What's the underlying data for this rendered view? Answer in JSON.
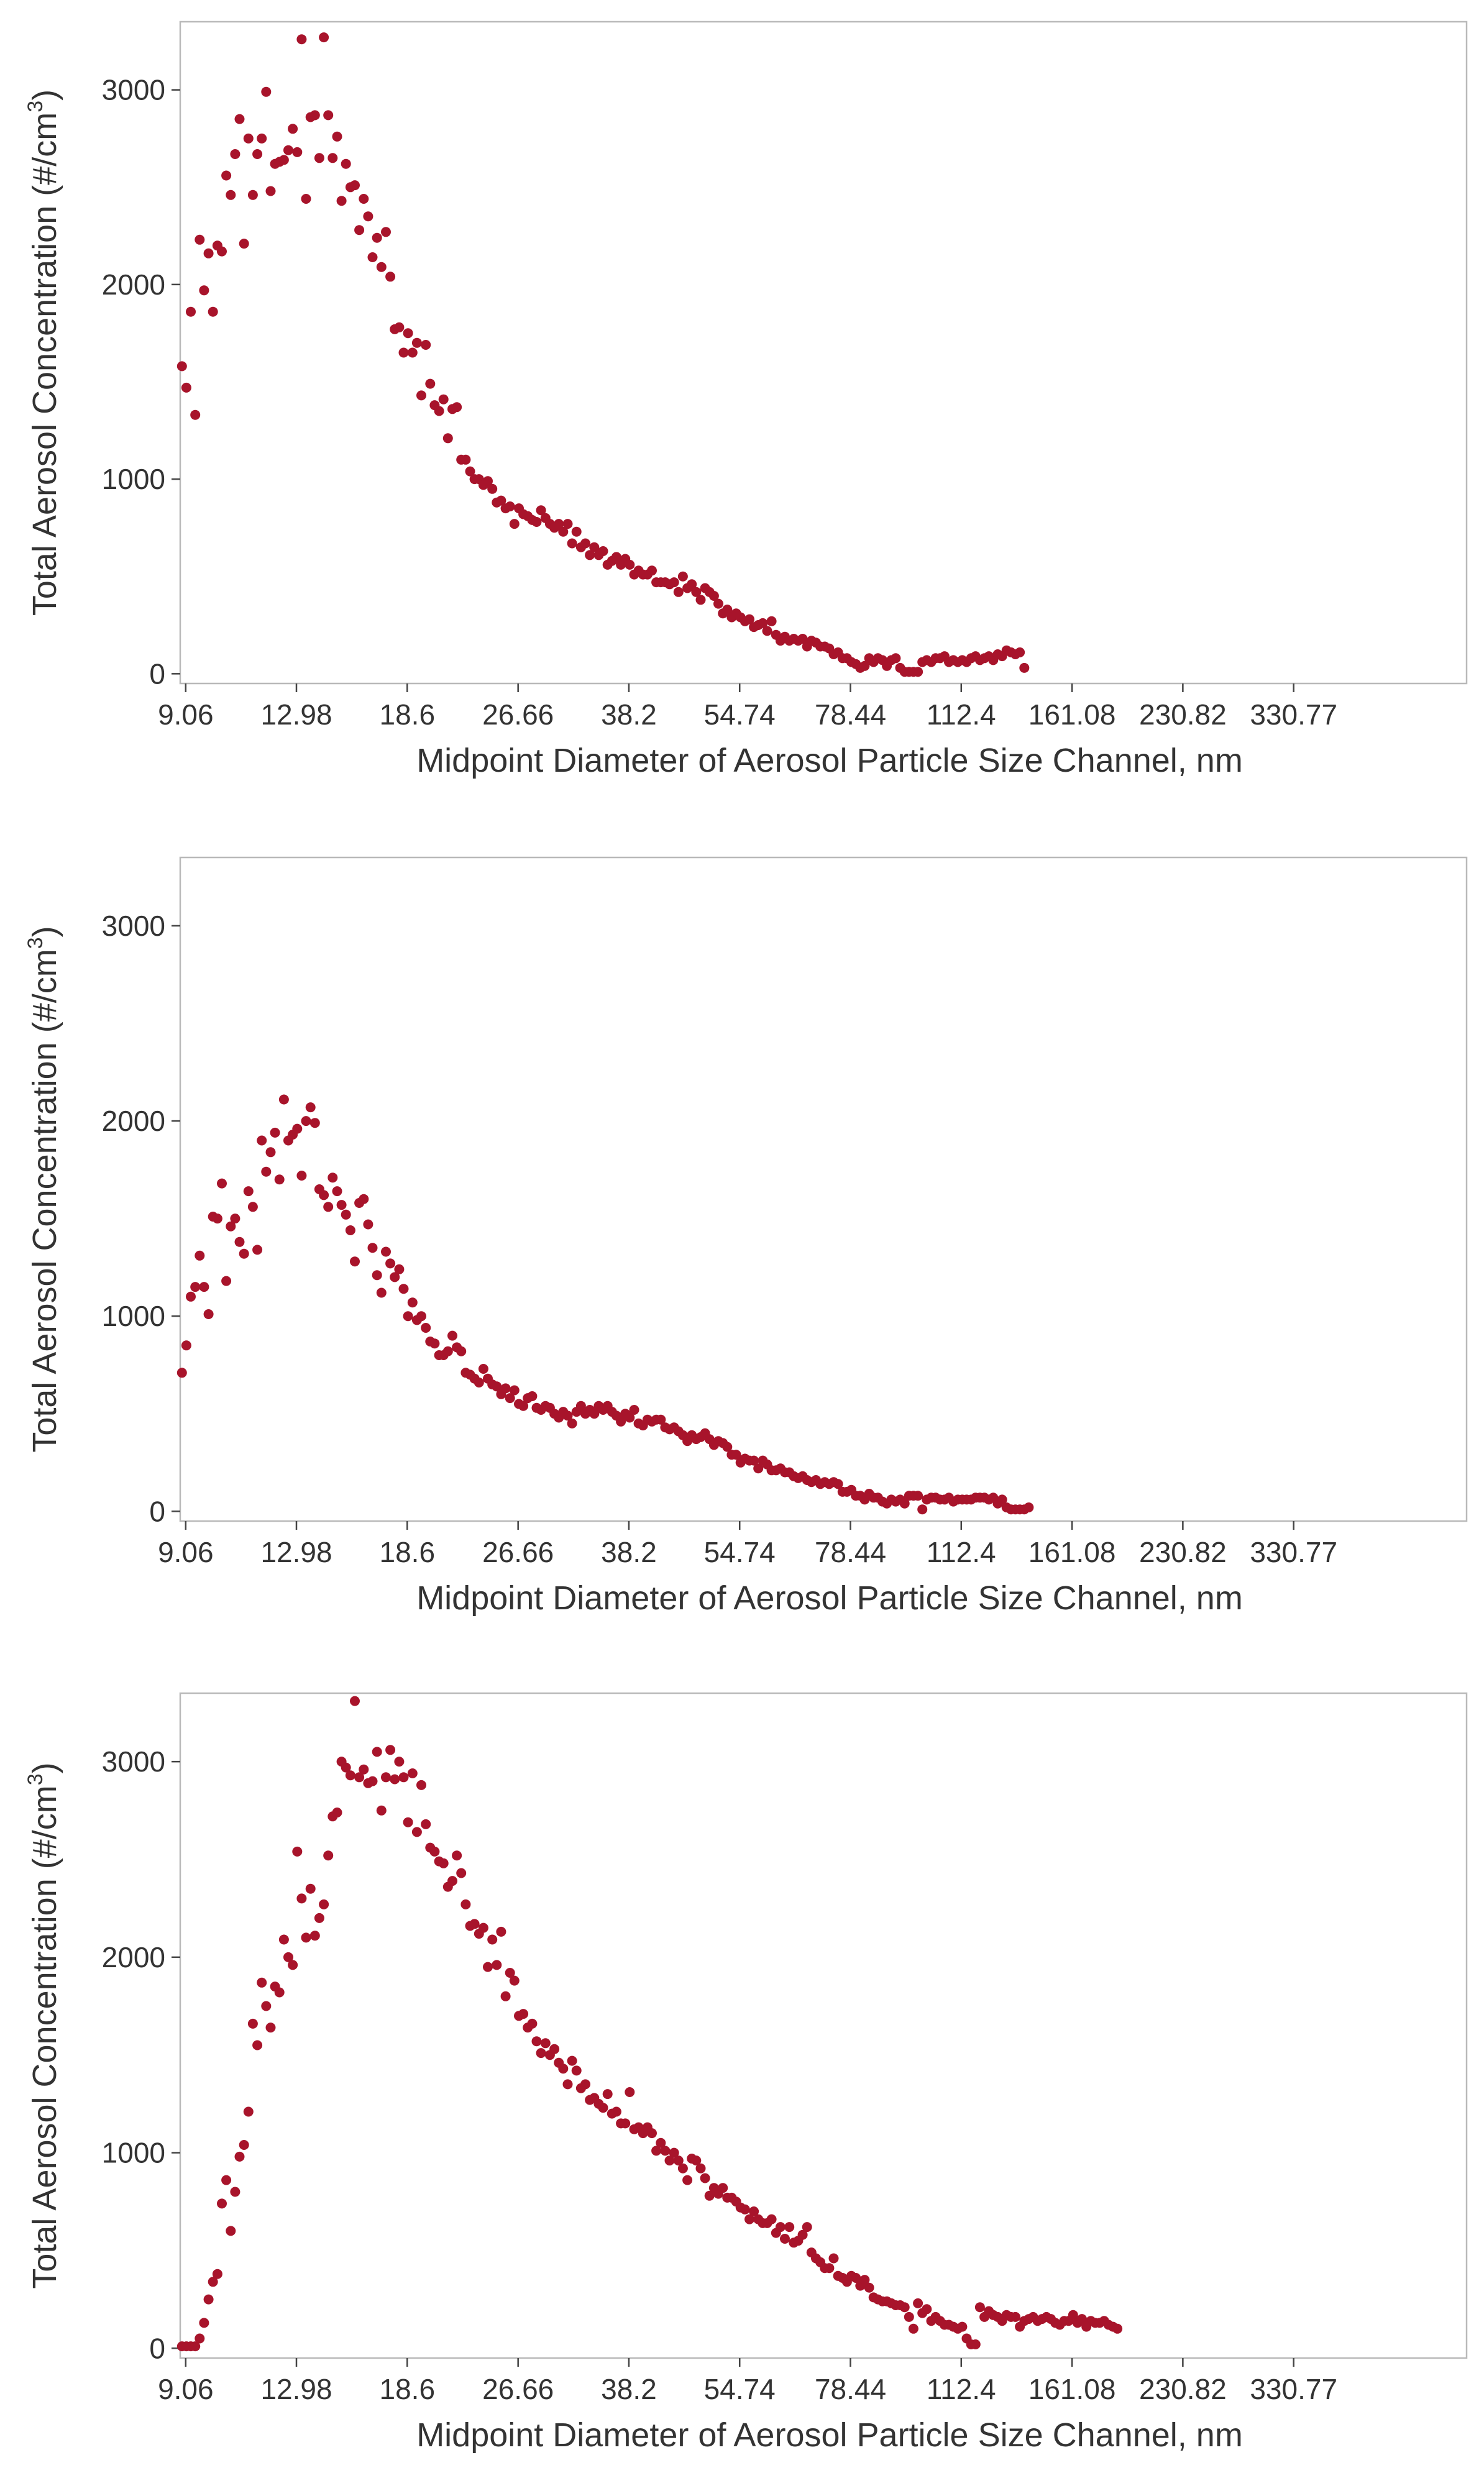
{
  "chart_data": [
    {
      "type": "scatter",
      "panel": "top",
      "title": "",
      "xlabel": "Midpoint Diameter of Aerosol Particle Size Channel, nm",
      "ylabel_main": "Total Aerosol Concentration (#/cm",
      "ylabel_sup": "3",
      "ylabel_end": ")",
      "ylim": [
        -50,
        3350
      ],
      "y_ticks": [
        0,
        1000,
        2000,
        3000
      ],
      "x_scale": "log",
      "xlim": [
        8.9,
        580
      ],
      "x_tick_values": [
        9.06,
        12.98,
        18.6,
        26.66,
        38.2,
        54.74,
        78.44,
        112.4,
        161.08,
        230.82,
        330.77
      ],
      "x_tick_labels": [
        "9.06",
        "12.98",
        "18.6",
        "26.66",
        "38.2",
        "54.74",
        "78.44",
        "112.4",
        "161.08",
        "230.82",
        "330.77"
      ],
      "marker_color": "#a8142b",
      "series": [
        {
          "name": "concentration",
          "x_start": 8.95,
          "x_ratio": 1.0145,
          "values": [
            1580,
            1470,
            1860,
            1330,
            2230,
            1970,
            2160,
            1860,
            2200,
            2170,
            2560,
            2460,
            2670,
            2850,
            2210,
            2750,
            2460,
            2670,
            2750,
            2990,
            2480,
            2620,
            2630,
            2640,
            2690,
            2800,
            2680,
            3260,
            2440,
            2860,
            2870,
            2650,
            3270,
            2870,
            2650,
            2760,
            2430,
            2620,
            2500,
            2510,
            2280,
            2440,
            2350,
            2140,
            2240,
            2090,
            2270,
            2040,
            1770,
            1780,
            1650,
            1750,
            1650,
            1700,
            1430,
            1690,
            1490,
            1380,
            1350,
            1410,
            1210,
            1360,
            1370,
            1100,
            1100,
            1040,
            1000,
            1000,
            970,
            990,
            950,
            880,
            890,
            850,
            860,
            770,
            850,
            820,
            810,
            790,
            780,
            840,
            800,
            770,
            750,
            770,
            730,
            770,
            670,
            730,
            650,
            670,
            610,
            650,
            610,
            630,
            560,
            580,
            600,
            560,
            590,
            560,
            510,
            530,
            510,
            510,
            530,
            470,
            470,
            470,
            460,
            470,
            420,
            500,
            440,
            460,
            420,
            380,
            440,
            420,
            400,
            360,
            310,
            330,
            290,
            310,
            290,
            270,
            280,
            240,
            250,
            260,
            220,
            270,
            200,
            170,
            190,
            170,
            180,
            170,
            180,
            140,
            170,
            160,
            140,
            140,
            130,
            100,
            110,
            80,
            80,
            60,
            50,
            30,
            40,
            80,
            60,
            80,
            70,
            40,
            70,
            80,
            30,
            10,
            10,
            10,
            10,
            60,
            70,
            60,
            80,
            80,
            90,
            60,
            70,
            60,
            70,
            60,
            80,
            90,
            70,
            80,
            90,
            70,
            100,
            90,
            120,
            110,
            100,
            110,
            30
          ]
        }
      ]
    },
    {
      "type": "scatter",
      "panel": "middle",
      "title": "",
      "xlabel": "Midpoint Diameter of Aerosol Particle Size Channel, nm",
      "ylabel_main": "Total Aerosol Concentration (#/cm",
      "ylabel_sup": "3",
      "ylabel_end": ")",
      "ylim": [
        -50,
        3350
      ],
      "y_ticks": [
        0,
        1000,
        2000,
        3000
      ],
      "x_scale": "log",
      "xlim": [
        8.9,
        580
      ],
      "x_tick_values": [
        9.06,
        12.98,
        18.6,
        26.66,
        38.2,
        54.74,
        78.44,
        112.4,
        161.08,
        230.82,
        330.77
      ],
      "x_tick_labels": [
        "9.06",
        "12.98",
        "18.6",
        "26.66",
        "38.2",
        "54.74",
        "78.44",
        "112.4",
        "161.08",
        "230.82",
        "330.77"
      ],
      "marker_color": "#a8142b",
      "series": [
        {
          "name": "concentration",
          "x_start": 8.95,
          "x_ratio": 1.0145,
          "values": [
            710,
            850,
            1100,
            1150,
            1310,
            1150,
            1010,
            1510,
            1500,
            1680,
            1180,
            1460,
            1500,
            1380,
            1320,
            1640,
            1560,
            1340,
            1900,
            1740,
            1840,
            1940,
            1700,
            2110,
            1900,
            1930,
            1960,
            1720,
            2000,
            2070,
            1990,
            1650,
            1620,
            1560,
            1710,
            1640,
            1570,
            1520,
            1440,
            1280,
            1580,
            1600,
            1470,
            1350,
            1210,
            1120,
            1330,
            1270,
            1200,
            1240,
            1140,
            1000,
            1070,
            980,
            1000,
            940,
            870,
            860,
            800,
            800,
            820,
            900,
            840,
            820,
            710,
            700,
            680,
            660,
            730,
            680,
            650,
            640,
            600,
            630,
            580,
            620,
            550,
            540,
            580,
            590,
            530,
            520,
            540,
            530,
            500,
            480,
            510,
            490,
            450,
            510,
            540,
            500,
            520,
            500,
            540,
            520,
            540,
            510,
            490,
            460,
            500,
            480,
            520,
            450,
            440,
            470,
            460,
            470,
            470,
            430,
            420,
            430,
            410,
            390,
            360,
            390,
            370,
            380,
            400,
            370,
            340,
            360,
            350,
            330,
            290,
            290,
            250,
            270,
            260,
            260,
            220,
            260,
            240,
            210,
            210,
            220,
            200,
            200,
            180,
            170,
            180,
            160,
            150,
            160,
            140,
            150,
            140,
            150,
            140,
            100,
            100,
            110,
            80,
            80,
            60,
            90,
            70,
            70,
            50,
            40,
            60,
            50,
            60,
            40,
            80,
            80,
            80,
            10,
            60,
            70,
            70,
            60,
            60,
            70,
            50,
            60,
            60,
            60,
            60,
            70,
            70,
            70,
            60,
            70,
            40,
            60,
            20,
            10,
            10,
            10,
            10,
            20
          ]
        }
      ]
    },
    {
      "type": "scatter",
      "panel": "bottom",
      "title": "",
      "xlabel": "Midpoint Diameter of Aerosol Particle Size Channel, nm",
      "ylabel_main": "Total Aerosol Concentration (#/cm",
      "ylabel_sup": "3",
      "ylabel_end": ")",
      "ylim": [
        -50,
        3350
      ],
      "y_ticks": [
        0,
        1000,
        2000,
        3000
      ],
      "x_scale": "log",
      "xlim": [
        8.9,
        580
      ],
      "x_tick_values": [
        9.06,
        12.98,
        18.6,
        26.66,
        38.2,
        54.74,
        78.44,
        112.4,
        161.08,
        230.82,
        330.77
      ],
      "x_tick_labels": [
        "9.06",
        "12.98",
        "18.6",
        "26.66",
        "38.2",
        "54.74",
        "78.44",
        "112.4",
        "161.08",
        "230.82",
        "330.77"
      ],
      "marker_color": "#a8142b",
      "series": [
        {
          "name": "concentration",
          "x_start": 8.95,
          "x_ratio": 1.0145,
          "values": [
            10,
            10,
            10,
            10,
            50,
            130,
            250,
            340,
            380,
            740,
            860,
            600,
            800,
            980,
            1040,
            1210,
            1660,
            1550,
            1870,
            1750,
            1640,
            1850,
            1820,
            2090,
            2000,
            1960,
            2540,
            2300,
            2100,
            2350,
            2110,
            2200,
            2270,
            2520,
            2720,
            2740,
            3000,
            2970,
            2930,
            3310,
            2920,
            2960,
            2890,
            2900,
            3050,
            2750,
            2920,
            3060,
            2910,
            3000,
            2920,
            2690,
            2940,
            2640,
            2880,
            2680,
            2560,
            2540,
            2490,
            2480,
            2360,
            2390,
            2520,
            2430,
            2270,
            2160,
            2170,
            2120,
            2150,
            1950,
            2090,
            1960,
            2130,
            1800,
            1920,
            1880,
            1700,
            1710,
            1640,
            1660,
            1570,
            1510,
            1560,
            1500,
            1530,
            1460,
            1430,
            1350,
            1470,
            1420,
            1330,
            1350,
            1270,
            1280,
            1250,
            1230,
            1300,
            1200,
            1210,
            1150,
            1150,
            1310,
            1120,
            1130,
            1100,
            1130,
            1100,
            1010,
            1050,
            1010,
            960,
            1000,
            960,
            920,
            860,
            970,
            960,
            920,
            870,
            780,
            820,
            790,
            820,
            770,
            770,
            750,
            720,
            710,
            660,
            700,
            660,
            640,
            640,
            660,
            590,
            620,
            560,
            620,
            540,
            550,
            580,
            620,
            490,
            460,
            440,
            410,
            410,
            460,
            370,
            360,
            340,
            370,
            360,
            320,
            350,
            310,
            260,
            250,
            240,
            240,
            230,
            220,
            220,
            210,
            160,
            100,
            230,
            180,
            200,
            140,
            160,
            140,
            120,
            120,
            110,
            100,
            110,
            50,
            20,
            20,
            210,
            160,
            190,
            170,
            160,
            140,
            170,
            160,
            160,
            110,
            140,
            150,
            160,
            140,
            150,
            160,
            150,
            130,
            120,
            140,
            140,
            170,
            130,
            150,
            110,
            140,
            130,
            130,
            140,
            120,
            110,
            100
          ]
        }
      ]
    }
  ]
}
